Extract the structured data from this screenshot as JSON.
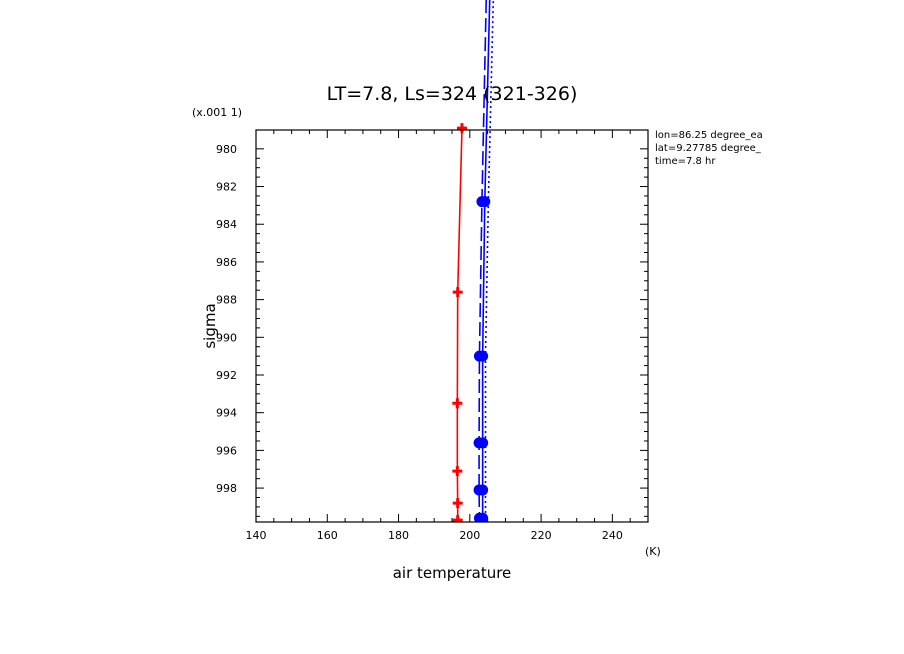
{
  "chart_data": {
    "type": "line",
    "title": "LT=7.8, Ls=324 (321-326)",
    "xlabel": "air temperature",
    "xunit": "(K)",
    "ylabel": "sigma",
    "yscale_note": "(x.001 1)",
    "xlim": [
      140,
      250
    ],
    "ylim": [
      979,
      999.8
    ],
    "y_reversed": true,
    "x_ticks": [
      "140",
      "160",
      "180",
      "200",
      "220",
      "240"
    ],
    "y_ticks": [
      "980",
      "982",
      "984",
      "986",
      "988",
      "990",
      "992",
      "994",
      "996",
      "998"
    ],
    "info": [
      "lon=86.25 degree_ea",
      "lat=9.27785 degree_",
      "time=7.8 hr"
    ],
    "series": [
      {
        "color": "#ff0000",
        "style": "solid",
        "marker": "plus",
        "points": [
          [
            197.8,
            978.9
          ],
          [
            196.6,
            987.6
          ],
          [
            196.5,
            993.5
          ],
          [
            196.5,
            997.1
          ],
          [
            196.6,
            998.8
          ],
          [
            196.6,
            999.7
          ]
        ]
      },
      {
        "color": "#0000ff",
        "style": "solid",
        "marker": "circle",
        "points": [
          [
            206.5,
            965.0
          ],
          [
            204.2,
            982.8
          ],
          [
            203.6,
            991.0
          ],
          [
            203.6,
            995.6
          ],
          [
            203.6,
            998.1
          ],
          [
            203.6,
            999.6
          ]
        ]
      },
      {
        "color": "#0000ff",
        "style": "dashed",
        "marker": "circle",
        "points": [
          [
            205.4,
            965.0
          ],
          [
            203.4,
            982.8
          ],
          [
            202.7,
            991.0
          ],
          [
            202.6,
            995.6
          ],
          [
            202.6,
            998.1
          ],
          [
            202.7,
            999.6
          ]
        ]
      },
      {
        "color": "#0000ff",
        "style": "dotted",
        "marker": "none",
        "points": [
          [
            207.5,
            965.0
          ],
          [
            205.2,
            982.8
          ],
          [
            204.4,
            991.0
          ],
          [
            204.4,
            995.6
          ],
          [
            204.4,
            998.1
          ],
          [
            204.4,
            999.6
          ]
        ]
      }
    ]
  }
}
